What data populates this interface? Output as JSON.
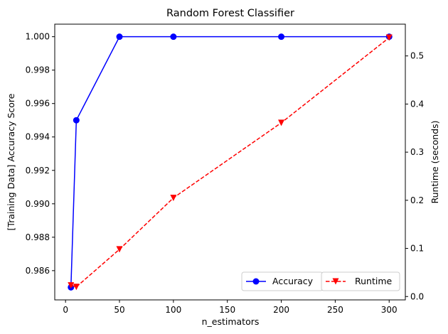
{
  "chart_data": {
    "type": "line",
    "title": "Random Forest Classifier",
    "xlabel": "n_estimators",
    "ylabel_left": "[Training Data] Accuracy Score",
    "ylabel_right": "Runtime (seconds)",
    "x": [
      5,
      10,
      50,
      100,
      200,
      300
    ],
    "xlim": [
      -10,
      315
    ],
    "xticks": [
      0,
      50,
      100,
      150,
      200,
      250,
      300
    ],
    "y_left_lim": [
      0.98425,
      1.00075
    ],
    "y_left_ticks": [
      "0.986",
      "0.988",
      "0.990",
      "0.992",
      "0.994",
      "0.996",
      "0.998",
      "1.000"
    ],
    "y_right_lim": [
      -0.007,
      0.566
    ],
    "y_right_ticks": [
      "0.0",
      "0.1",
      "0.2",
      "0.3",
      "0.4",
      "0.5"
    ],
    "grid": false,
    "legend_placement": "lower-right",
    "series": [
      {
        "name": "Accuracy",
        "axis": "left",
        "values": [
          0.985,
          0.995,
          1.0,
          1.0,
          1.0,
          1.0
        ],
        "color": "#0000ff",
        "line_style": "solid",
        "marker": "circle"
      },
      {
        "name": "Runtime",
        "axis": "right",
        "values": [
          0.023,
          0.02,
          0.098,
          0.205,
          0.361,
          0.538
        ],
        "color": "#ff0000",
        "line_style": "dashed",
        "marker": "triangle-down"
      }
    ]
  }
}
